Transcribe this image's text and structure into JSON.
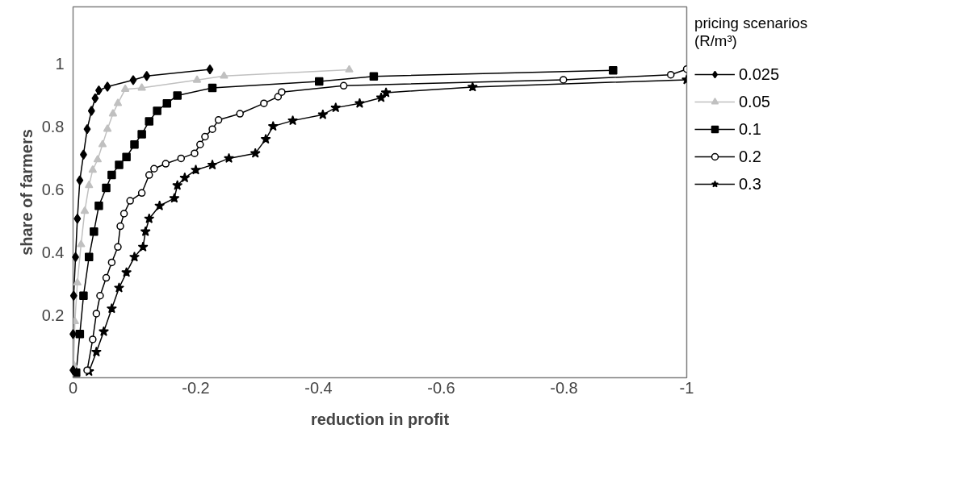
{
  "chart_data": {
    "type": "line",
    "xlabel": "reduction in profit",
    "ylabel": "share of farmers",
    "legend_title": "pricing scenarios (R/m³)",
    "legend": "right",
    "grid": false,
    "line_style": "solid",
    "xlim": [
      0,
      -1
    ],
    "xticks": [
      0,
      -0.2,
      -0.4,
      -0.6,
      -0.8,
      -1
    ],
    "ylim": [
      0,
      1.18
    ],
    "yticks": [
      0.2,
      0.4,
      0.6,
      0.8,
      1
    ],
    "series": [
      {
        "name": "0.025",
        "color": "#000000",
        "marker": "diamond",
        "x": [
          0,
          0,
          -0.001,
          -0.004,
          -0.007,
          -0.011,
          -0.017,
          -0.023,
          -0.03,
          -0.036,
          -0.042,
          -0.056,
          -0.098,
          -0.12,
          -0.223
        ],
        "values": [
          0.024,
          0.139,
          0.261,
          0.384,
          0.506,
          0.628,
          0.71,
          0.791,
          0.849,
          0.889,
          0.914,
          0.926,
          0.947,
          0.96,
          0.981
        ]
      },
      {
        "name": "0.05",
        "color": "#c0c0c0",
        "marker": "triangle",
        "x": [
          -0.001,
          -0.003,
          -0.007,
          -0.013,
          -0.019,
          -0.026,
          -0.032,
          -0.04,
          -0.048,
          -0.056,
          -0.065,
          -0.073,
          -0.085,
          -0.112,
          -0.202,
          -0.246,
          -0.45
        ],
        "values": [
          0.041,
          0.179,
          0.302,
          0.424,
          0.53,
          0.612,
          0.661,
          0.694,
          0.742,
          0.791,
          0.84,
          0.873,
          0.918,
          0.922,
          0.947,
          0.96,
          0.98
        ]
      },
      {
        "name": "0.1",
        "color": "#000000",
        "marker": "square",
        "x": [
          -0.005,
          -0.011,
          -0.017,
          -0.026,
          -0.034,
          -0.042,
          -0.054,
          -0.063,
          -0.075,
          -0.087,
          -0.1,
          -0.112,
          -0.124,
          -0.137,
          -0.153,
          -0.17,
          -0.227,
          -0.401,
          -0.49,
          -0.88
        ],
        "values": [
          0.016,
          0.139,
          0.261,
          0.384,
          0.465,
          0.547,
          0.604,
          0.645,
          0.677,
          0.702,
          0.742,
          0.775,
          0.816,
          0.849,
          0.873,
          0.898,
          0.922,
          0.943,
          0.959,
          0.978
        ]
      },
      {
        "name": "0.2",
        "color": "#000000",
        "marker": "circle",
        "x": [
          -0.023,
          -0.032,
          -0.038,
          -0.044,
          -0.054,
          -0.063,
          -0.073,
          -0.077,
          -0.083,
          -0.093,
          -0.112,
          -0.124,
          -0.132,
          -0.151,
          -0.176,
          -0.198,
          -0.207,
          -0.215,
          -0.227,
          -0.237,
          -0.272,
          -0.311,
          -0.334,
          -0.34,
          -0.441,
          -0.799,
          -0.974,
          -1.0
        ],
        "values": [
          0.024,
          0.122,
          0.204,
          0.261,
          0.318,
          0.367,
          0.416,
          0.482,
          0.522,
          0.563,
          0.588,
          0.645,
          0.665,
          0.681,
          0.698,
          0.714,
          0.742,
          0.767,
          0.791,
          0.82,
          0.84,
          0.873,
          0.894,
          0.909,
          0.929,
          0.948,
          0.964,
          0.982
        ]
      },
      {
        "name": "0.3",
        "color": "#000000",
        "marker": "star",
        "x": [
          -0.026,
          -0.038,
          -0.05,
          -0.063,
          -0.075,
          -0.087,
          -0.1,
          -0.114,
          -0.118,
          -0.124,
          -0.141,
          -0.165,
          -0.17,
          -0.182,
          -0.2,
          -0.227,
          -0.254,
          -0.297,
          -0.314,
          -0.326,
          -0.358,
          -0.407,
          -0.428,
          -0.467,
          -0.502,
          -0.51,
          -0.651,
          -1.0
        ],
        "values": [
          0.02,
          0.082,
          0.147,
          0.22,
          0.286,
          0.335,
          0.384,
          0.416,
          0.465,
          0.506,
          0.547,
          0.571,
          0.612,
          0.636,
          0.661,
          0.677,
          0.698,
          0.714,
          0.759,
          0.8,
          0.818,
          0.837,
          0.859,
          0.873,
          0.891,
          0.907,
          0.925,
          0.948
        ]
      }
    ]
  }
}
